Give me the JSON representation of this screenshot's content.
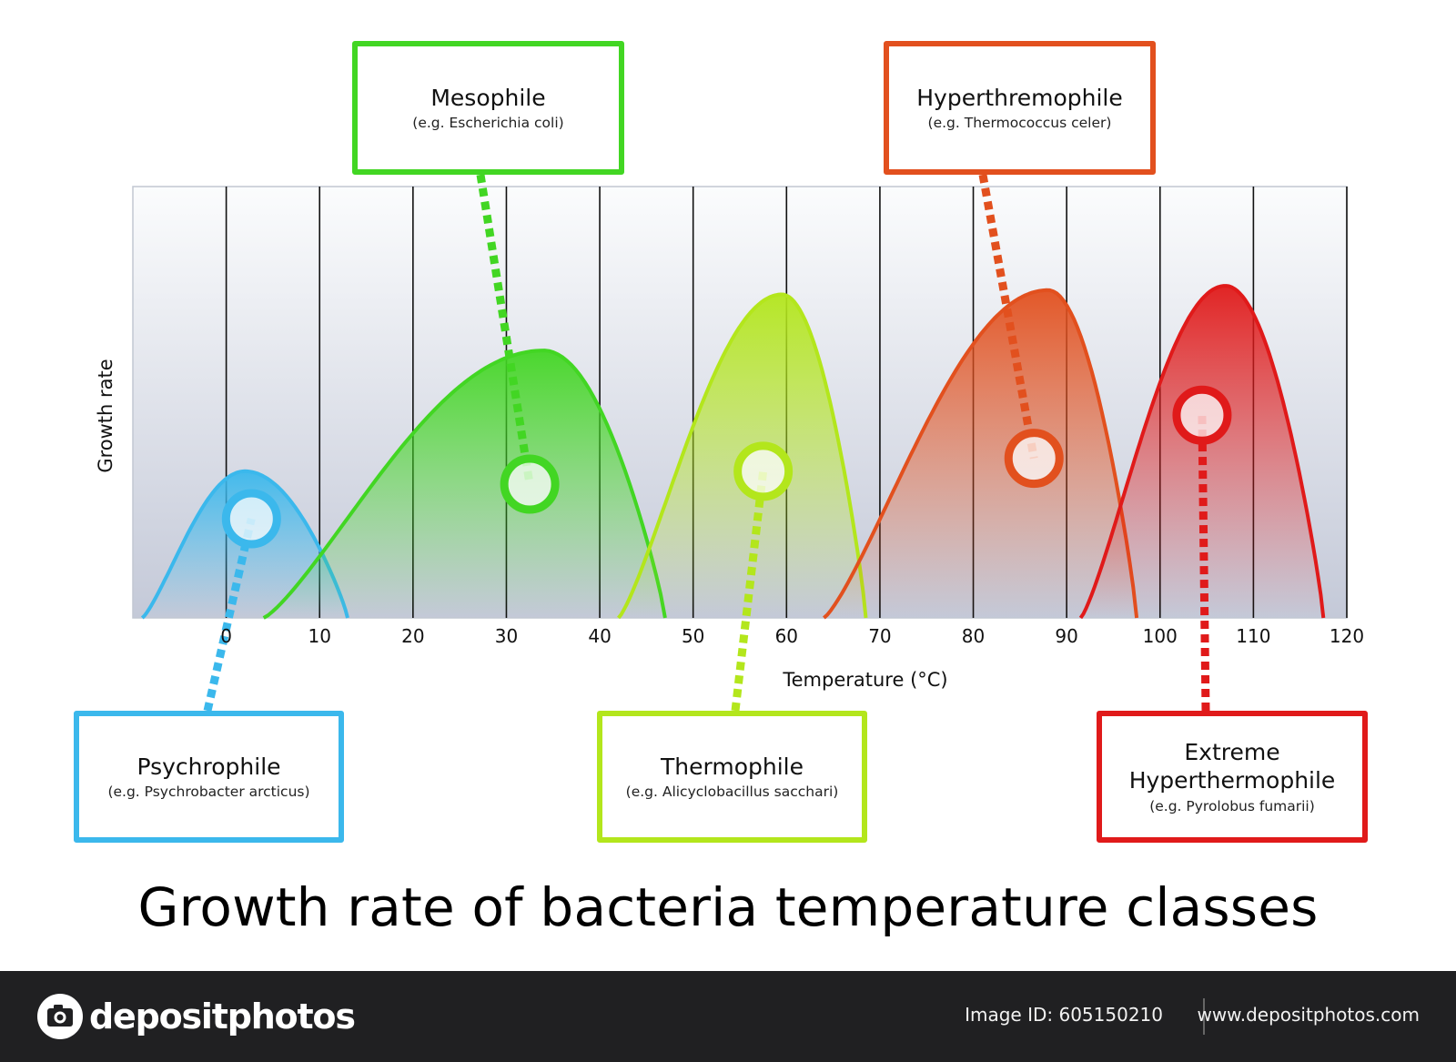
{
  "chart_data": {
    "type": "area",
    "title": "Growth rate of bacteria temperature classes",
    "xlabel": "Temperature (°C)",
    "ylabel": "Growth rate",
    "x_ticks": [
      0,
      10,
      20,
      30,
      40,
      50,
      60,
      70,
      80,
      90,
      100,
      110,
      120
    ],
    "xlim": [
      -10,
      120
    ],
    "ylim": [
      0,
      1
    ],
    "grid": "vertical",
    "series": [
      {
        "name": "Psychrophile",
        "example": "(e.g. Psychrobacter arcticus)",
        "color": "#3bb8ec",
        "min_temp": -9,
        "optimum_temp": 2,
        "max_temp": 13,
        "peak": 0.34,
        "marker": [
          2.7,
          0.23
        ]
      },
      {
        "name": "Mesophile",
        "example": "(e.g. Escherichia coli)",
        "color": "#42d623",
        "min_temp": 4,
        "optimum_temp": 34,
        "max_temp": 47,
        "peak": 0.62,
        "marker": [
          32.5,
          0.31
        ]
      },
      {
        "name": "Thermophile",
        "example": "(e.g. Alicyclobacillus sacchari)",
        "color": "#b3e61c",
        "min_temp": 42,
        "optimum_temp": 59.5,
        "max_temp": 68.5,
        "peak": 0.75,
        "marker": [
          57.5,
          0.34
        ]
      },
      {
        "name": "Hyperthremophile",
        "example": "(e.g. Thermococcus celer)",
        "color": "#e2501e",
        "min_temp": 64,
        "optimum_temp": 88,
        "max_temp": 97.5,
        "peak": 0.76,
        "marker": [
          86.5,
          0.37
        ]
      },
      {
        "name": "Extreme Hyperthermophile",
        "example": "(e.g. Pyrolobus fumarii)",
        "color": "#e01a1a",
        "min_temp": 91.5,
        "optimum_temp": 107,
        "max_temp": 117.5,
        "peak": 0.77,
        "marker": [
          104.5,
          0.47
        ]
      }
    ]
  },
  "footer": {
    "brand": "depositphotos",
    "image_id": "Image ID: 605150210",
    "site": "www.depositphotos.com"
  }
}
